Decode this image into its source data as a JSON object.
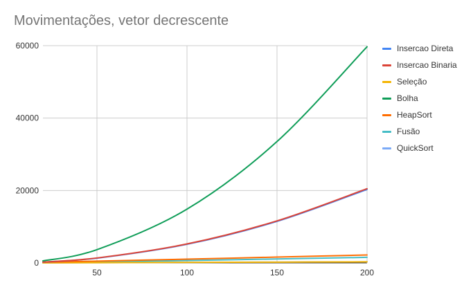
{
  "chart_data": {
    "type": "line",
    "title": "Movimentações, vetor decrescente",
    "xlabel": "",
    "ylabel": "",
    "xlim": [
      20,
      200
    ],
    "ylim": [
      0,
      60000
    ],
    "x_ticks": [
      "50",
      "100",
      "150",
      "200"
    ],
    "y_ticks": [
      "0",
      "20000",
      "40000",
      "60000"
    ],
    "grid": true,
    "legend_position": "right",
    "x": [
      20,
      50,
      100,
      150,
      200
    ],
    "series": [
      {
        "name": "Insercao Direta",
        "color": "#4285f4",
        "values": [
          228,
          1323,
          5148,
          11473,
          20298
        ]
      },
      {
        "name": "Insercao Binaria",
        "color": "#db4437",
        "values": [
          247,
          1372,
          5247,
          11622,
          20497
        ]
      },
      {
        "name": "Seleção",
        "color": "#f4b400",
        "values": [
          30,
          75,
          150,
          225,
          300
        ]
      },
      {
        "name": "Bolha",
        "color": "#0f9d58",
        "values": [
          570,
          3675,
          14850,
          33525,
          59700
        ]
      },
      {
        "name": "HeapSort",
        "color": "#ff6d01",
        "values": [
          180,
          500,
          1050,
          1620,
          2200
        ]
      },
      {
        "name": "Fusão",
        "color": "#46bdc6",
        "values": [
          88,
          286,
          672,
          1101,
          1544
        ]
      },
      {
        "name": "QuickSort",
        "color": "#7baaf7",
        "values": [
          30,
          75,
          150,
          225,
          300
        ]
      }
    ]
  }
}
